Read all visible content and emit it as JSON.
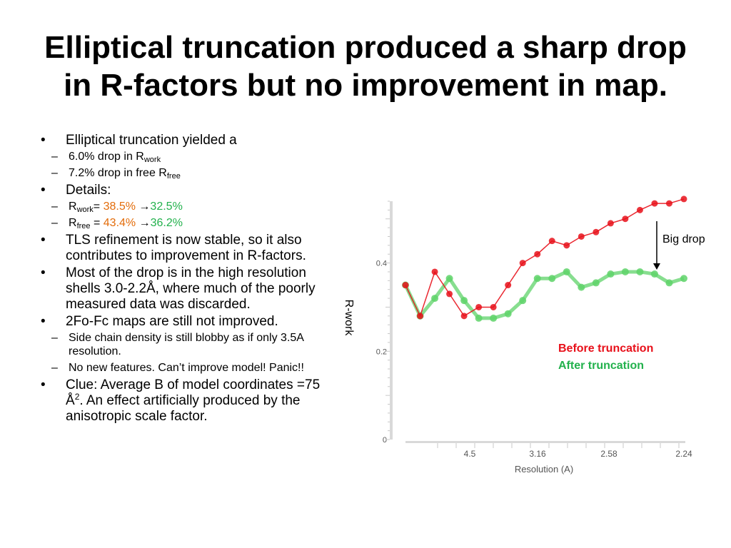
{
  "slide": {
    "title_line1": "Elliptical truncation produced a sharp drop",
    "title_line2": "in R-factors but no improvement in map."
  },
  "bullets": {
    "b1": "Elliptical truncation yielded a",
    "b1_s1_text": "6.0% drop in R",
    "b1_s1_sub": "work",
    "b1_s2_text": "7.2% drop in free R",
    "b1_s2_sub": "free",
    "b2": "Details:",
    "b2_s1_r": "R",
    "b2_s1_sub": "work",
    "b2_s1_eq": "= ",
    "b2_s1_before": "38.5%",
    "b2_s1_arrow": " →",
    "b2_s1_after": "32.5%",
    "b2_s2_r": "R",
    "b2_s2_sub": "free",
    "b2_s2_eq": " = ",
    "b2_s2_before": "43.4%",
    "b2_s2_arrow": " →",
    "b2_s2_after": "36.2%",
    "b3": "TLS refinement is now stable, so it also contributes to improvement in R-factors.",
    "b4": "Most of the drop is in the high resolution shells 3.0-2.2Å, where much of the poorly measured data was discarded.",
    "b5": "2Fo-Fc maps are still not improved.",
    "b5_s1": "Side chain density is still blobby as if only 3.5A resolution.",
    "b5_s2": "No new features. Can’t improve model!  Panic!!",
    "b6_a": "Clue: Average B of model coordinates =75 Å",
    "b6_sup": "2",
    "b6_b": ".  An effect artificially produced by the anisotropic scale factor."
  },
  "chart_data": {
    "type": "line",
    "xlabel": "Resolution (A)",
    "ylabel": "R-work",
    "x_tick_labels": [
      "4.5",
      "3.16",
      "2.58",
      "2.24"
    ],
    "y_ticks": [
      {
        "value": 0,
        "label": "0"
      },
      {
        "value": 0.2,
        "label": "0.2"
      },
      {
        "value": 0.4,
        "label": "0.4"
      }
    ],
    "ylim": [
      0,
      0.54
    ],
    "x_count": 20,
    "series": [
      {
        "name": "Before truncation",
        "color": "#e8101a",
        "values": [
          0.35,
          0.28,
          0.38,
          0.33,
          0.28,
          0.3,
          0.3,
          0.35,
          0.4,
          0.42,
          0.45,
          0.44,
          0.46,
          0.47,
          0.49,
          0.5,
          0.52,
          0.535,
          0.535,
          0.545
        ]
      },
      {
        "name": "After truncation",
        "color": "#5fd36a",
        "values": [
          0.35,
          0.28,
          0.32,
          0.365,
          0.315,
          0.275,
          0.275,
          0.285,
          0.315,
          0.365,
          0.365,
          0.38,
          0.345,
          0.355,
          0.375,
          0.38,
          0.38,
          0.375,
          0.355,
          0.365
        ]
      }
    ],
    "annotation": {
      "text": "Big drop"
    },
    "legend": {
      "position": "right"
    }
  }
}
